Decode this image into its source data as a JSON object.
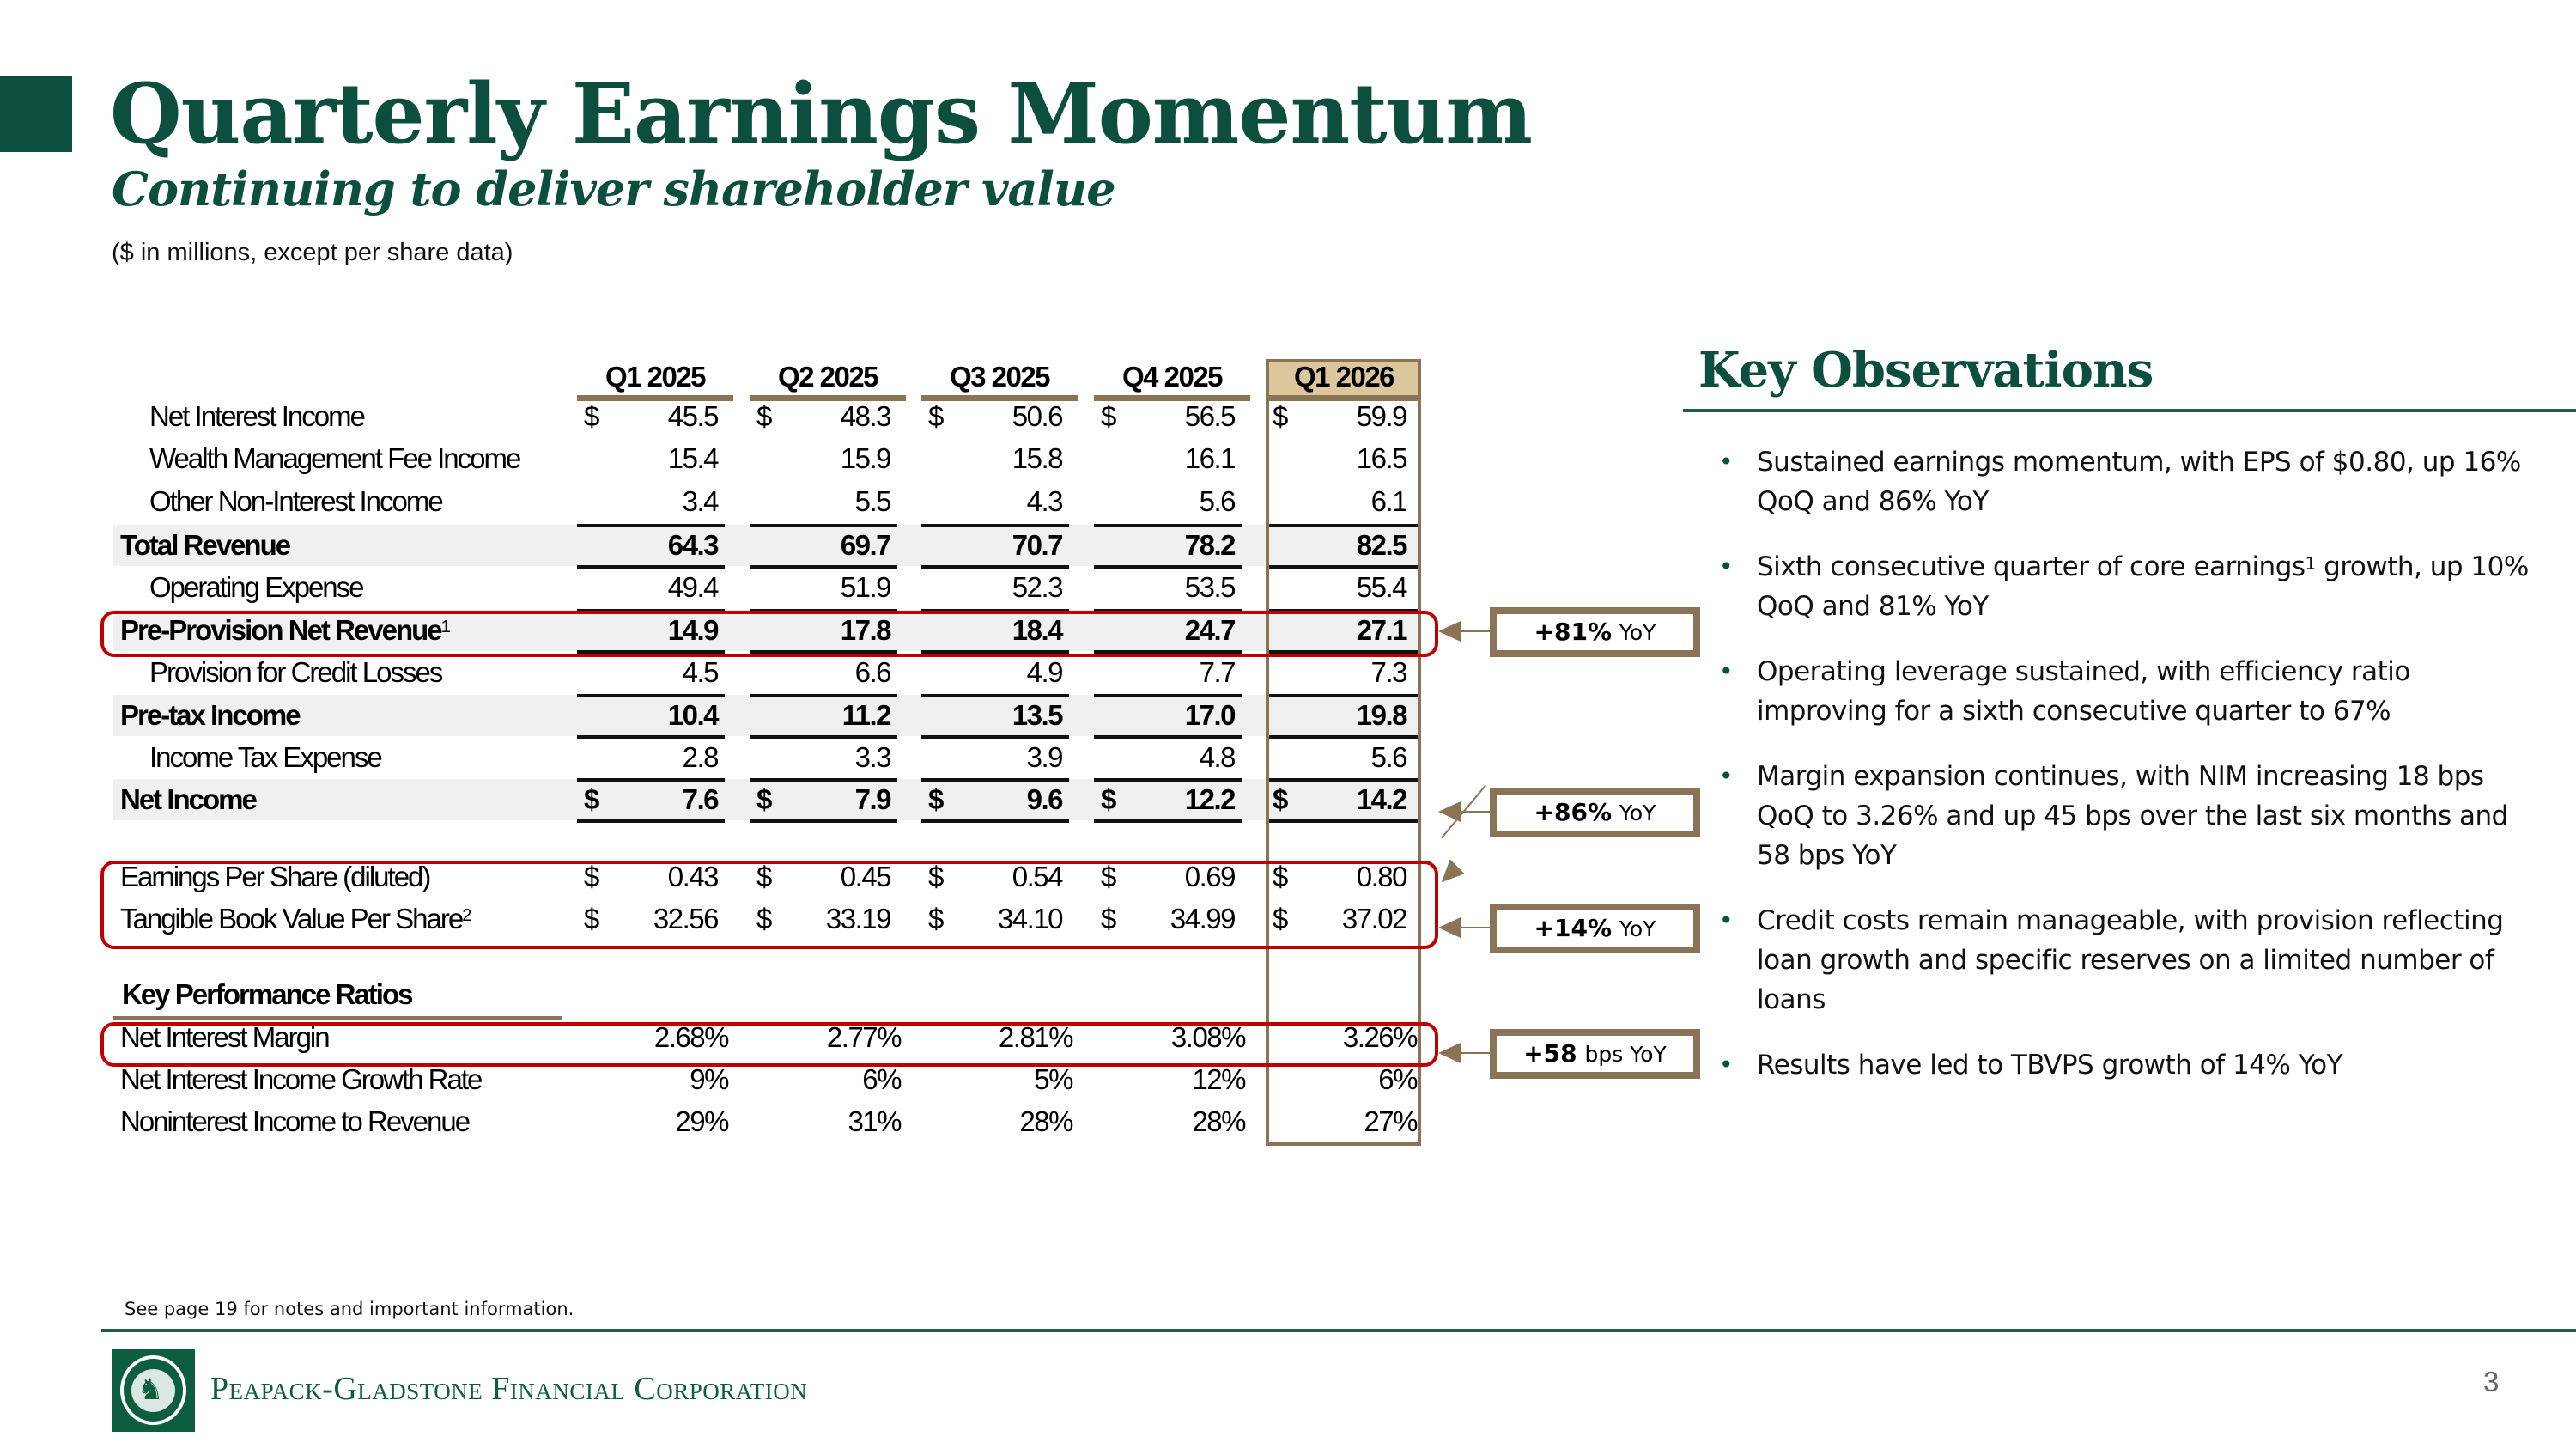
{
  "header": {
    "title": "Quarterly Earnings Momentum",
    "subtitle": "Continuing to deliver shareholder value",
    "units_note": "($ in millions, except per share data)"
  },
  "table": {
    "columns": [
      "Q1 2025",
      "Q2 2025",
      "Q3 2025",
      "Q4 2025",
      "Q1 2026"
    ],
    "highlighted_column": "Q1 2026",
    "rows": [
      {
        "label": "Net Interest Income",
        "values": [
          "45.5",
          "48.3",
          "50.6",
          "56.5",
          "59.9"
        ],
        "dollar": true
      },
      {
        "label": "Wealth Management Fee Income",
        "values": [
          "15.4",
          "15.9",
          "15.8",
          "16.1",
          "16.5"
        ]
      },
      {
        "label": "Other Non-Interest Income",
        "values": [
          "3.4",
          "5.5",
          "4.3",
          "5.6",
          "6.1"
        ]
      },
      {
        "label": "Total Revenue",
        "values": [
          "64.3",
          "69.7",
          "70.7",
          "78.2",
          "82.5"
        ],
        "bold": true
      },
      {
        "label": "Operating Expense",
        "values": [
          "49.4",
          "51.9",
          "52.3",
          "53.5",
          "55.4"
        ]
      },
      {
        "label": "Pre-Provision Net Revenue",
        "footnote": "1",
        "values": [
          "14.9",
          "17.8",
          "18.4",
          "24.7",
          "27.1"
        ],
        "bold": true
      },
      {
        "label": "Provision for Credit Losses",
        "values": [
          "4.5",
          "6.6",
          "4.9",
          "7.7",
          "7.3"
        ]
      },
      {
        "label": "Pre-tax Income",
        "values": [
          "10.4",
          "11.2",
          "13.5",
          "17.0",
          "19.8"
        ],
        "bold": true
      },
      {
        "label": "Income Tax Expense",
        "values": [
          "2.8",
          "3.3",
          "3.9",
          "4.8",
          "5.6"
        ]
      },
      {
        "label": "Net Income",
        "values": [
          "7.6",
          "7.9",
          "9.6",
          "12.2",
          "14.2"
        ],
        "bold": true,
        "dollar": true
      },
      {
        "label": "Earnings Per Share (diluted)",
        "values": [
          "0.43",
          "0.45",
          "0.54",
          "0.69",
          "0.80"
        ],
        "dollar": true
      },
      {
        "label": "Tangible Book Value Per Share",
        "footnote": "2",
        "values": [
          "32.56",
          "33.19",
          "34.10",
          "34.99",
          "37.02"
        ],
        "dollar": true
      }
    ],
    "dollar_sign": "$",
    "ratios_header": "Key Performance Ratios",
    "ratios": [
      {
        "label": "Net Interest Margin",
        "values": [
          "2.68%",
          "2.77%",
          "2.81%",
          "3.08%",
          "3.26%"
        ]
      },
      {
        "label": "Net Interest Income Growth Rate",
        "values": [
          "9%",
          "6%",
          "5%",
          "12%",
          "6%"
        ]
      },
      {
        "label": "Noninterest Income to Revenue",
        "values": [
          "29%",
          "31%",
          "28%",
          "28%",
          "27%"
        ]
      }
    ]
  },
  "callouts": [
    {
      "value": "+81%",
      "suffix": "YoY",
      "target": "Pre-Provision Net Revenue"
    },
    {
      "value": "+86%",
      "suffix": "YoY",
      "target": "Net Income / Earnings Per Share"
    },
    {
      "value": "+14%",
      "suffix": "YoY",
      "target": "Tangible Book Value Per Share"
    },
    {
      "value": "+58",
      "suffix": "bps YoY",
      "target": "Net Interest Margin"
    }
  ],
  "key_observations": {
    "title": "Key Observations",
    "items": [
      {
        "text": "Sustained earnings momentum, with EPS of $0.80, up 16% QoQ and 86% YoY"
      },
      {
        "text_before": "Sixth consecutive quarter of core earnings",
        "sup": "1",
        "text_after": " growth, up 10% QoQ and 81% YoY"
      },
      {
        "text": "Operating leverage sustained, with efficiency ratio improving for a sixth consecutive quarter to 67%"
      },
      {
        "text": "Margin expansion continues, with NIM increasing 18 bps QoQ to 3.26% and up 45 bps over the last six months and 58 bps YoY"
      },
      {
        "text": "Credit costs remain manageable, with provision reflecting loan growth and specific reserves on a limited number of loans"
      },
      {
        "text": "Results have led to TBVPS growth of 14% YoY"
      }
    ]
  },
  "footer": {
    "note": "See page 19 for notes and important information.",
    "company": "Peapack-Gladstone Financial Corporation",
    "page_number": "3"
  },
  "colors": {
    "brand_green": "#0d4f3f",
    "accent_tan": "#8b7355",
    "highlight_header": "#dcc79c",
    "red_box": "#c00000",
    "row_shade": "#f0f0f0"
  }
}
